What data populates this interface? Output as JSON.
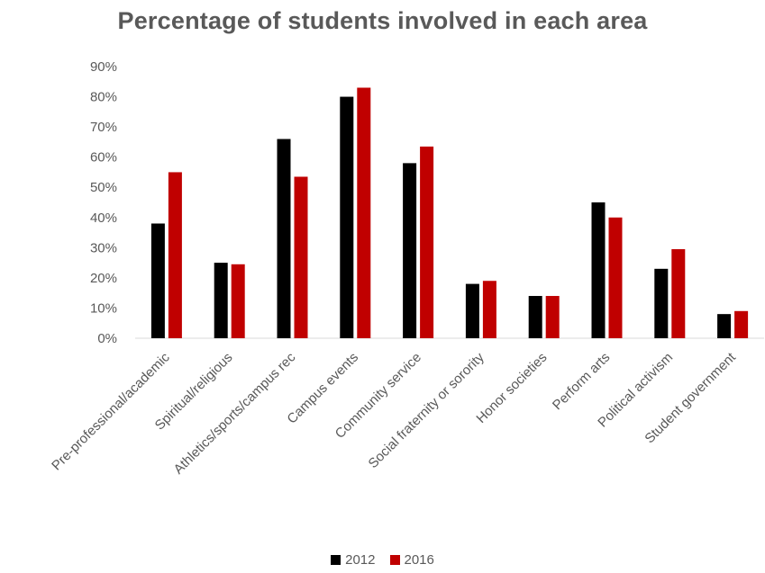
{
  "chart_data": {
    "type": "bar",
    "title": "Percentage of students involved in each area",
    "xlabel": "",
    "ylabel": "",
    "ylim": [
      0,
      90
    ],
    "yticks": [
      0,
      10,
      20,
      30,
      40,
      50,
      60,
      70,
      80,
      90
    ],
    "ytick_labels": [
      "0%",
      "10%",
      "20%",
      "30%",
      "40%",
      "50%",
      "60%",
      "70%",
      "80%",
      "90%"
    ],
    "grid": false,
    "legend_position": "bottom",
    "categories": [
      "Pre-professional/academic",
      "Spiritual/religious",
      "Athletics/sports/campus rec",
      "Campus events",
      "Community service",
      "Social fraternity or sorority",
      "Honor societies",
      "Perform arts",
      "Political activism",
      "Student government"
    ],
    "series": [
      {
        "name": "2012",
        "color": "#000000",
        "values": [
          38,
          25,
          66,
          80,
          58,
          18,
          14,
          45,
          23,
          8
        ]
      },
      {
        "name": "2016",
        "color": "#C00000",
        "values": [
          55,
          24.5,
          53.5,
          83,
          63.5,
          19,
          14,
          40,
          29.5,
          9
        ]
      }
    ]
  }
}
